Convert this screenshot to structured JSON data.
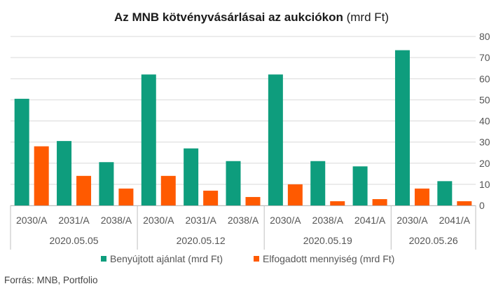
{
  "chart_data": {
    "type": "bar",
    "title": {
      "bold": "Az MNB kötvényvásárlásai az aukciókon",
      "normal": " (mrd Ft)"
    },
    "groups": [
      {
        "date": "2020.05.05",
        "bonds": [
          "2030/A",
          "2031/A",
          "2038/A"
        ]
      },
      {
        "date": "2020.05.12",
        "bonds": [
          "2030/A",
          "2031/A",
          "2038/A"
        ]
      },
      {
        "date": "2020.05.19",
        "bonds": [
          "2030/A",
          "2038/A",
          "2041/A"
        ]
      },
      {
        "date": "2020.05.26",
        "bonds": [
          "2030/A",
          "2041/A"
        ]
      }
    ],
    "series": [
      {
        "name": "Benyújtott ajánlat (mrd Ft)",
        "color": "#0e9d7d",
        "values": [
          50.5,
          30.5,
          20.5,
          62,
          27,
          21,
          62,
          21,
          18.5,
          73.5,
          11.5
        ]
      },
      {
        "name": "Elfogadott mennyiség (mrd Ft)",
        "color": "#ff5a00",
        "values": [
          28,
          14,
          8,
          14,
          7,
          4,
          10,
          2,
          3,
          8,
          2
        ]
      }
    ],
    "yaxis": {
      "min": 0,
      "max": 80,
      "step": 10,
      "position": "right",
      "ticks": [
        "0",
        "10",
        "20",
        "30",
        "40",
        "50",
        "60",
        "70",
        "80"
      ]
    },
    "grid": true,
    "legend": "bottom",
    "source": "Forrás: MNB, Portfolio"
  }
}
